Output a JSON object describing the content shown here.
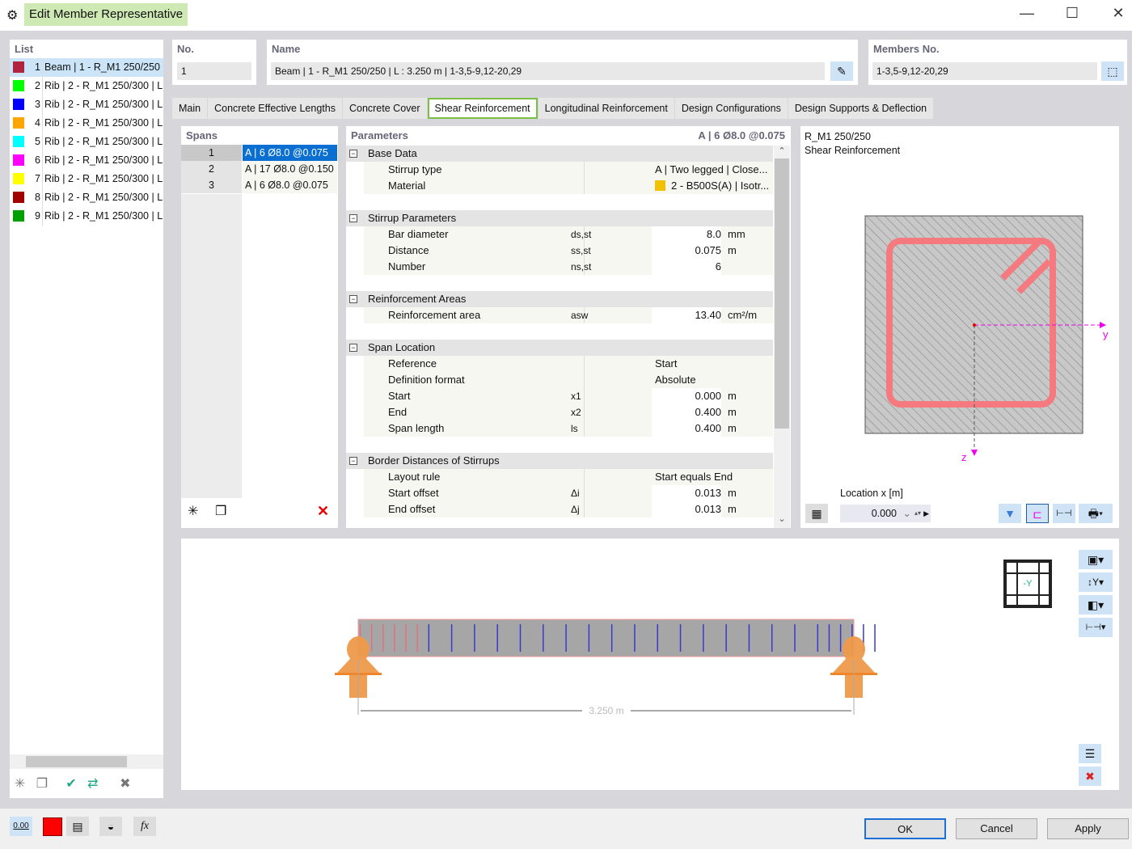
{
  "window": {
    "title": "Edit Member Representative",
    "minimize": "—",
    "maximize": "☐",
    "close": "✕"
  },
  "list": {
    "header": "List",
    "items": [
      {
        "num": "1",
        "label": "Beam | 1 - R_M1 250/250 | L",
        "color": "#b0243f"
      },
      {
        "num": "2",
        "label": "Rib | 2 - R_M1 250/300 | L",
        "color": "#00ff00"
      },
      {
        "num": "3",
        "label": "Rib | 2 - R_M1 250/300 | L",
        "color": "#0000ff"
      },
      {
        "num": "4",
        "label": "Rib | 2 - R_M1 250/300 | L",
        "color": "#ffa500"
      },
      {
        "num": "5",
        "label": "Rib | 2 - R_M1 250/300 | L",
        "color": "#00ffff"
      },
      {
        "num": "6",
        "label": "Rib | 2 - R_M1 250/300 | L",
        "color": "#ff00ff"
      },
      {
        "num": "7",
        "label": "Rib | 2 - R_M1 250/300 | L",
        "color": "#ffff00"
      },
      {
        "num": "8",
        "label": "Rib | 2 - R_M1 250/300 | L",
        "color": "#a00000"
      },
      {
        "num": "9",
        "label": "Rib | 2 - R_M1 250/300 | L",
        "color": "#00a000"
      }
    ]
  },
  "no": {
    "label": "No.",
    "value": "1"
  },
  "name": {
    "label": "Name",
    "value": "Beam | 1 - R_M1 250/250 | L : 3.250 m | 1-3,5-9,12-20,29"
  },
  "members": {
    "label": "Members No.",
    "value": "1-3,5-9,12-20,29"
  },
  "tabs": [
    "Main",
    "Concrete Effective Lengths",
    "Concrete Cover",
    "Shear Reinforcement",
    "Longitudinal Reinforcement",
    "Design Configurations",
    "Design Supports & Deflection"
  ],
  "active_tab": "Shear Reinforcement",
  "spans": {
    "header": "Spans",
    "rows": [
      {
        "num": "1",
        "label": "A | 6 Ø8.0 @0.075",
        "count": 6,
        "spacing": 0.075
      },
      {
        "num": "2",
        "label": "A | 17 Ø8.0 @0.150",
        "count": 17,
        "spacing": 0.15
      },
      {
        "num": "3",
        "label": "A | 6 Ø8.0 @0.075",
        "count": 6,
        "spacing": 0.075
      }
    ]
  },
  "parameters": {
    "header": "Parameters",
    "selected": "A | 6 Ø8.0 @0.075",
    "groups": [
      {
        "title": "Base Data",
        "rows": [
          {
            "name": "Stirrup type",
            "sym": "",
            "value": "A | Two legged | Close...",
            "unit": "",
            "text": true
          },
          {
            "name": "Material",
            "sym": "",
            "value": "2 - B500S(A) | Isotr...",
            "unit": "",
            "text": true,
            "swatch": "#f2c200"
          }
        ]
      },
      {
        "title": "Stirrup Parameters",
        "rows": [
          {
            "name": "Bar diameter",
            "sym": "ds,st",
            "value": "8.0",
            "unit": "mm"
          },
          {
            "name": "Distance",
            "sym": "ss,st",
            "value": "0.075",
            "unit": "m"
          },
          {
            "name": "Number",
            "sym": "ns,st",
            "value": "6",
            "unit": ""
          }
        ]
      },
      {
        "title": "Reinforcement Areas",
        "rows": [
          {
            "name": "Reinforcement area",
            "sym": "asw",
            "value": "13.40",
            "unit": "cm²/m"
          }
        ]
      },
      {
        "title": "Span Location",
        "rows": [
          {
            "name": "Reference",
            "sym": "",
            "value": "Start",
            "unit": "",
            "text": true
          },
          {
            "name": "Definition format",
            "sym": "",
            "value": "Absolute",
            "unit": "",
            "text": true
          },
          {
            "name": "Start",
            "sym": "x1",
            "value": "0.000",
            "unit": "m"
          },
          {
            "name": "End",
            "sym": "x2",
            "value": "0.400",
            "unit": "m"
          },
          {
            "name": "Span length",
            "sym": "ls",
            "value": "0.400",
            "unit": "m"
          }
        ]
      },
      {
        "title": "Border Distances of Stirrups",
        "rows": [
          {
            "name": "Layout rule",
            "sym": "",
            "value": "Start equals End",
            "unit": "",
            "text": true
          },
          {
            "name": "Start offset",
            "sym": "Δi",
            "value": "0.013",
            "unit": "m"
          },
          {
            "name": "End offset",
            "sym": "Δj",
            "value": "0.013",
            "unit": "m"
          }
        ]
      }
    ]
  },
  "section": {
    "title": "R_M1 250/250",
    "subtitle": "Shear Reinforcement",
    "axis_y": "y",
    "axis_z": "z",
    "location_label": "Location x [m]",
    "location_value": "0.000"
  },
  "beam": {
    "length_m": 3.25,
    "dimension": "3.250 m",
    "start_offset": 0.013,
    "view_axis": "-Y"
  },
  "buttons": {
    "ok": "OK",
    "cancel": "Cancel",
    "apply": "Apply"
  },
  "bottom": {
    "units": "0.00"
  }
}
